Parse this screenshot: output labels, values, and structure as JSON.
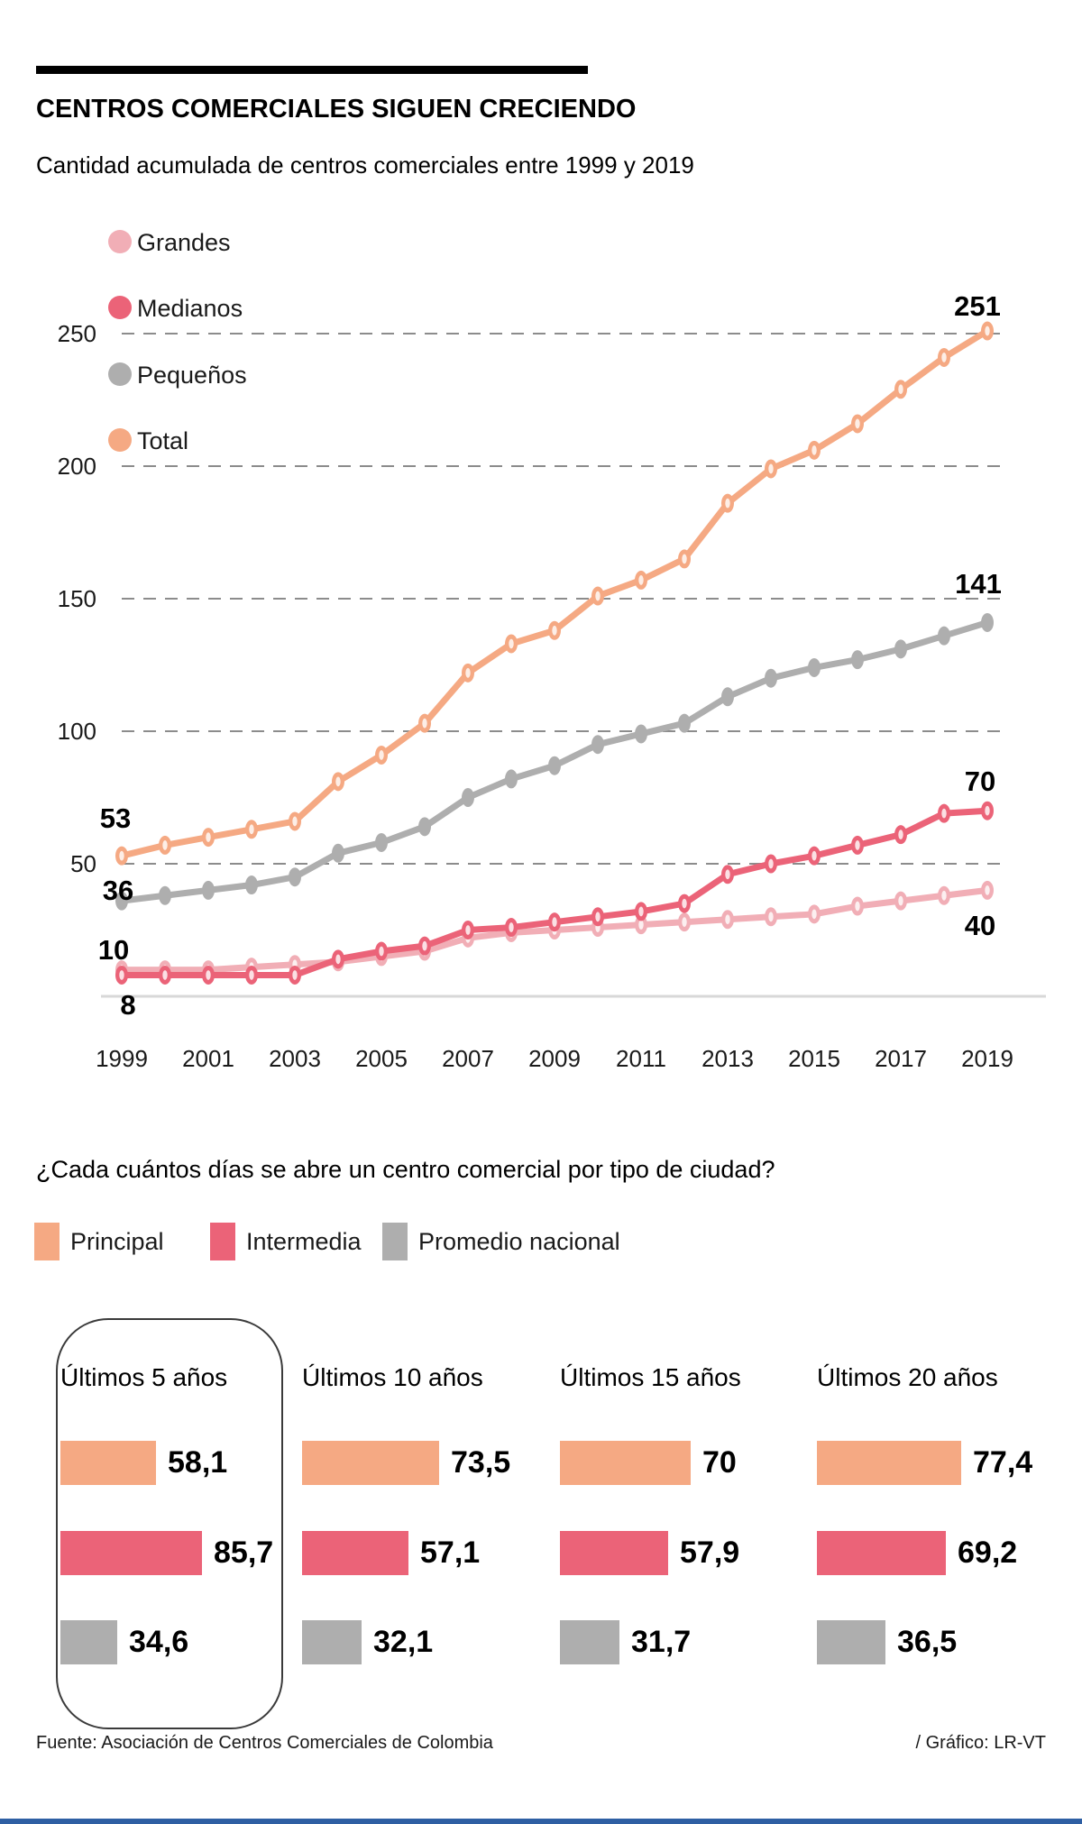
{
  "header": {
    "title": "CENTROS COMERCIALES SIGUEN CRECIENDO"
  },
  "footer": {
    "source": "Fuente: Asociación de Centros Comerciales de Colombia",
    "credit": "/ Gráfico: LR-VT"
  },
  "colors": {
    "orange": "#F5A983",
    "red": "#EB6378",
    "pink": "#F1AEB6",
    "gray": "#AEAEAE",
    "grid": "#8C8C8C",
    "baseline": "#D8D8D8",
    "text": "#1A1A1A",
    "bottom_strip_blue": "#2E5FA3"
  },
  "chart_data": [
    {
      "type": "line",
      "title": "Cantidad acumulada de centros comerciales entre 1999 y 2019",
      "x": [
        1999,
        2000,
        2001,
        2002,
        2003,
        2004,
        2005,
        2006,
        2007,
        2008,
        2009,
        2010,
        2011,
        2012,
        2013,
        2014,
        2015,
        2016,
        2017,
        2018,
        2019
      ],
      "x_tick_labels": [
        "1999",
        "2001",
        "2003",
        "2005",
        "2007",
        "2009",
        "2011",
        "2013",
        "2015",
        "2017",
        "2019"
      ],
      "ylim": [
        0,
        260
      ],
      "y_gridlines": [
        50,
        100,
        150,
        200,
        250
      ],
      "grid": "horizontal dashed",
      "legend_position": "top-left vertical",
      "series": [
        {
          "id": "grandes",
          "name": "Grandes",
          "color": "#F1AEB6",
          "values": [
            10,
            10,
            10,
            11,
            12,
            13,
            15,
            17,
            22,
            24,
            25,
            26,
            27,
            28,
            29,
            30,
            31,
            34,
            36,
            38,
            40
          ],
          "label_start": "10",
          "label_end": "40"
        },
        {
          "id": "medianos",
          "name": "Medianos",
          "color": "#EB6378",
          "values": [
            8,
            8,
            8,
            8,
            8,
            14,
            17,
            19,
            25,
            26,
            28,
            30,
            32,
            35,
            46,
            50,
            53,
            57,
            61,
            69,
            70
          ],
          "label_start": "8",
          "label_end": "70"
        },
        {
          "id": "pequenos",
          "name": "Pequeños",
          "color": "#AEAEAE",
          "values": [
            36,
            38,
            40,
            42,
            45,
            54,
            58,
            64,
            75,
            82,
            87,
            95,
            99,
            103,
            113,
            120,
            124,
            127,
            131,
            136,
            141
          ],
          "label_start": "36",
          "label_end": "141"
        },
        {
          "id": "total",
          "name": "Total",
          "color": "#F5A983",
          "values": [
            53,
            57,
            60,
            63,
            66,
            81,
            91,
            103,
            122,
            133,
            138,
            151,
            157,
            165,
            186,
            199,
            206,
            216,
            229,
            241,
            251
          ],
          "label_start": "53",
          "label_end": "251"
        }
      ]
    },
    {
      "type": "bar",
      "title": "¿Cada cuántos días se abre un centro comercial por tipo de ciudad?",
      "orientation": "horizontal",
      "legend": [
        {
          "id": "principal",
          "label": "Principal",
          "color": "#F5A983"
        },
        {
          "id": "intermedia",
          "label": "Intermedia",
          "color": "#EB6378"
        },
        {
          "id": "promedio-nacional",
          "label": "Promedio nacional",
          "color": "#AEAEAE"
        }
      ],
      "groups": [
        {
          "label": "Últimos 5 años",
          "highlighted": true,
          "values": [
            {
              "series": "Principal",
              "value": 58.1,
              "display": "58,1"
            },
            {
              "series": "Intermedia",
              "value": 85.7,
              "display": "85,7"
            },
            {
              "series": "Promedio nacional",
              "value": 34.6,
              "display": "34,6"
            }
          ]
        },
        {
          "label": "Últimos 10 años",
          "highlighted": false,
          "values": [
            {
              "series": "Principal",
              "value": 73.5,
              "display": "73,5"
            },
            {
              "series": "Intermedia",
              "value": 57.1,
              "display": "57,1"
            },
            {
              "series": "Promedio nacional",
              "value": 32.1,
              "display": "32,1"
            }
          ]
        },
        {
          "label": "Últimos 15 años",
          "highlighted": false,
          "values": [
            {
              "series": "Principal",
              "value": 70,
              "display": "70"
            },
            {
              "series": "Intermedia",
              "value": 57.9,
              "display": "57,9"
            },
            {
              "series": "Promedio nacional",
              "value": 31.7,
              "display": "31,7"
            }
          ]
        },
        {
          "label": "Últimos 20 años",
          "highlighted": false,
          "values": [
            {
              "series": "Principal",
              "value": 77.4,
              "display": "77,4"
            },
            {
              "series": "Intermedia",
              "value": 69.2,
              "display": "69,2"
            },
            {
              "series": "Promedio nacional",
              "value": 36.5,
              "display": "36,5"
            }
          ]
        }
      ]
    }
  ]
}
